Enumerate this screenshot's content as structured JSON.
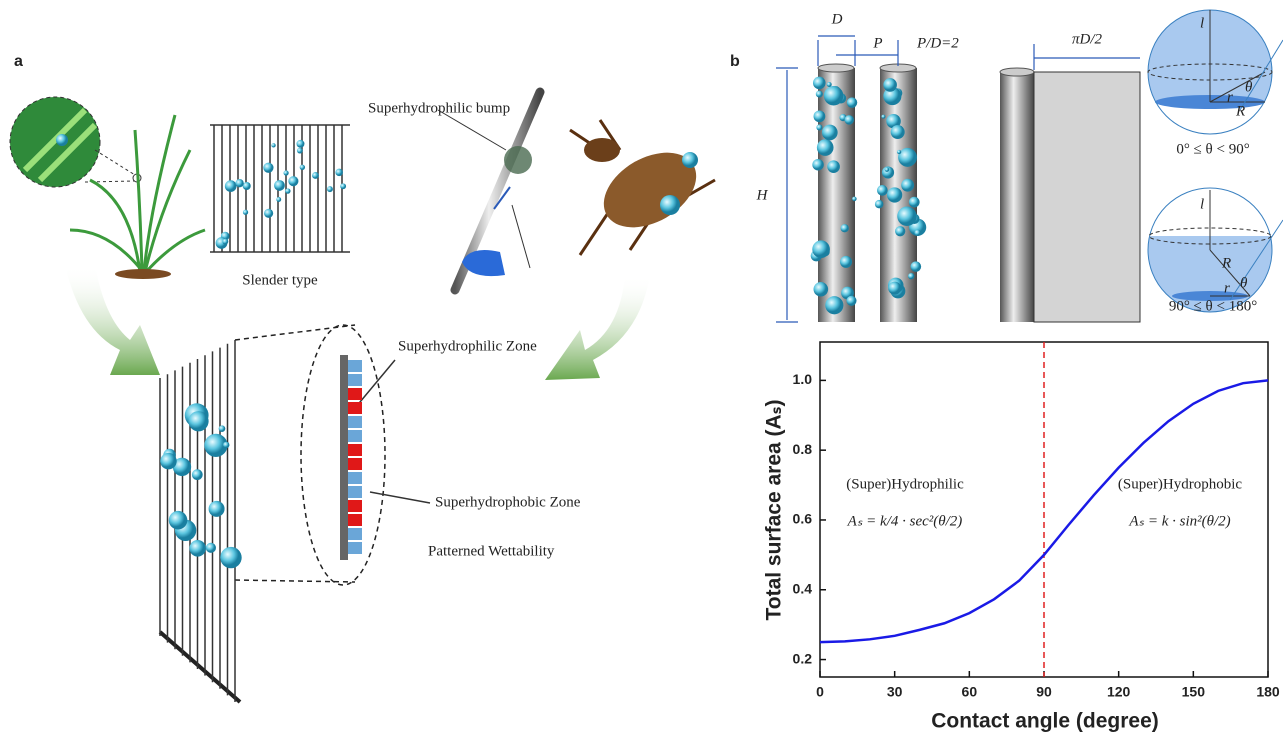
{
  "panel_a": {
    "label": "a",
    "slender_type": "Slender type",
    "bump": "Superhydrophilic bump",
    "zone_philic": "Superhydrophilic Zone",
    "zone_phobic": "Superhydrophobic Zone",
    "patterned": "Patterned Wettability"
  },
  "panel_b": {
    "label": "b",
    "diameter": "D",
    "pitch": "P",
    "ratio": "P/D=2",
    "unrolled": "πD/2",
    "height": "H",
    "sphere_1": {
      "l": "l",
      "theta": "θ",
      "r": "r",
      "R": "R",
      "range": "0° ≤ θ < 90°"
    },
    "sphere_2": {
      "l": "l",
      "R": "R",
      "theta": "θ",
      "r": "r",
      "range": "90° ≤ θ < 180°"
    }
  },
  "chart_data": {
    "type": "line",
    "xlabel": "Contact angle (degree)",
    "ylabel": "Total surface area (Aₛ)",
    "x": [
      0,
      10,
      20,
      30,
      40,
      50,
      60,
      70,
      80,
      90,
      100,
      110,
      120,
      130,
      140,
      150,
      160,
      170,
      180
    ],
    "values": [
      0.25,
      0.252,
      0.258,
      0.268,
      0.285,
      0.304,
      0.333,
      0.373,
      0.426,
      0.5,
      0.587,
      0.671,
      0.75,
      0.821,
      0.883,
      0.933,
      0.97,
      0.992,
      1.0
    ],
    "color": "#1a1ae6",
    "xlim": [
      0,
      180
    ],
    "xticks": [
      0,
      30,
      60,
      90,
      120,
      150,
      180
    ],
    "ylim": [
      0.15,
      1.11
    ],
    "yticks": [
      0.2,
      0.4,
      0.6,
      0.8,
      {
        "value": 1,
        "label": "1.0"
      }
    ],
    "vline": {
      "x": 90,
      "color": "#e02020"
    },
    "annotations": [
      {
        "title": "(Super)Hydrophilic",
        "formula": "Aₛ = k/4 · sec²(θ/2)"
      },
      {
        "title": "(Super)Hydrophobic",
        "formula": "Aₛ = k · sin²(θ/2)"
      }
    ]
  }
}
